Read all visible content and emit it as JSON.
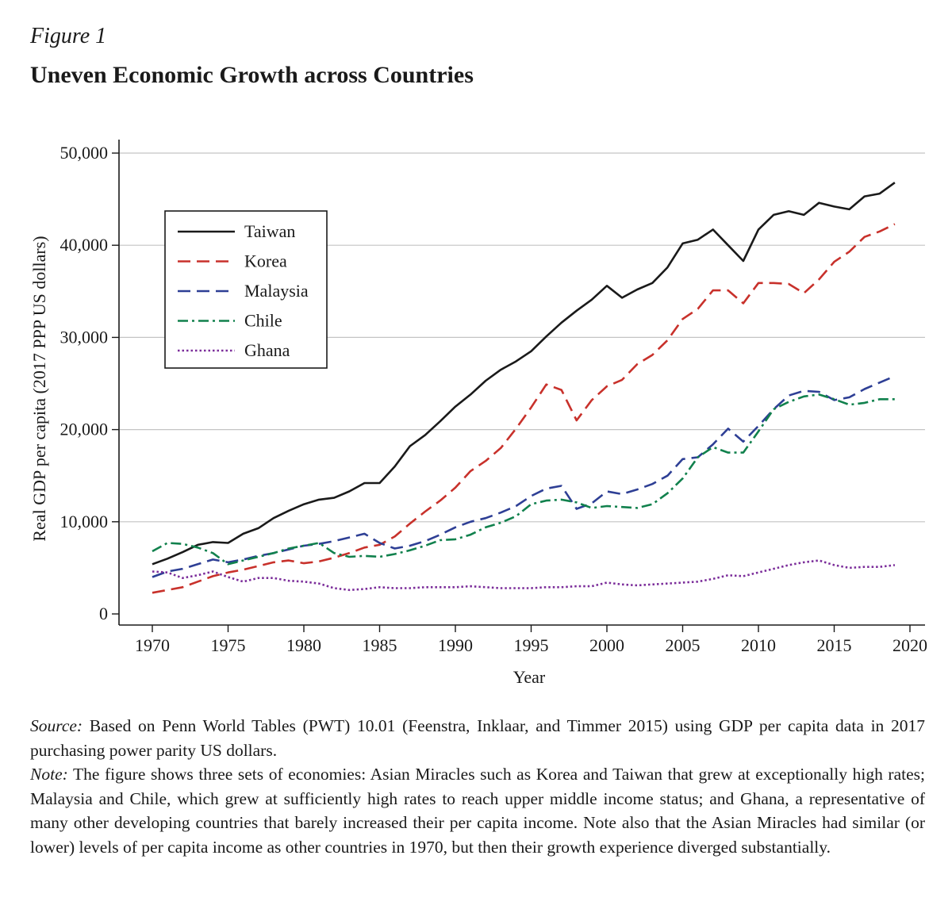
{
  "figure": {
    "label": "Figure 1",
    "title": "Uneven Economic Growth across Countries"
  },
  "chart_data": {
    "type": "line",
    "xlabel": "Year",
    "ylabel": "Real GDP per capita (2017 PPP US dollars)",
    "xlim": [
      1970,
      2020
    ],
    "ylim": [
      0,
      50000
    ],
    "xticks": [
      1970,
      1975,
      1980,
      1985,
      1990,
      1995,
      2000,
      2005,
      2010,
      2015,
      2020
    ],
    "xtick_labels": [
      "1970",
      "1975",
      "1980",
      "1985",
      "1990",
      "1995",
      "2000",
      "2005",
      "2010",
      "2015",
      "2020"
    ],
    "yticks": [
      0,
      10000,
      20000,
      30000,
      40000,
      50000
    ],
    "ytick_labels": [
      "0",
      "10,000",
      "20,000",
      "30,000",
      "40,000",
      "50,000"
    ],
    "grid": "horizontal",
    "legend": "upper-left",
    "x": [
      1970,
      1971,
      1972,
      1973,
      1974,
      1975,
      1976,
      1977,
      1978,
      1979,
      1980,
      1981,
      1982,
      1983,
      1984,
      1985,
      1986,
      1987,
      1988,
      1989,
      1990,
      1991,
      1992,
      1993,
      1994,
      1995,
      1996,
      1997,
      1998,
      1999,
      2000,
      2001,
      2002,
      2003,
      2004,
      2005,
      2006,
      2007,
      2008,
      2009,
      2010,
      2011,
      2012,
      2013,
      2014,
      2015,
      2016,
      2017,
      2018,
      2019
    ],
    "series": [
      {
        "name": "Taiwan",
        "color": "#1a1a1a",
        "dash": "solid",
        "values": [
          5400,
          6000,
          6700,
          7500,
          7800,
          7700,
          8700,
          9300,
          10400,
          11200,
          11900,
          12400,
          12600,
          13300,
          14200,
          14200,
          16000,
          18200,
          19400,
          20900,
          22500,
          23800,
          25300,
          26500,
          27400,
          28500,
          30100,
          31600,
          32900,
          34100,
          35600,
          34300,
          35200,
          35900,
          37600,
          40200,
          40600,
          41700,
          40000,
          38300,
          41700,
          43300,
          43700,
          43300,
          44600,
          44200,
          43900,
          45300,
          45600,
          46800
        ]
      },
      {
        "name": "Korea",
        "color": "#c8312b",
        "dash": "dashed",
        "values": [
          2300,
          2600,
          2900,
          3500,
          4100,
          4500,
          4800,
          5200,
          5600,
          5800,
          5500,
          5700,
          6100,
          6600,
          7200,
          7500,
          8400,
          9800,
          11100,
          12300,
          13700,
          15500,
          16600,
          18000,
          20100,
          22400,
          24900,
          24300,
          21000,
          23200,
          24700,
          25400,
          27100,
          28100,
          29700,
          32000,
          33100,
          35100,
          35100,
          33700,
          35900,
          35900,
          35800,
          34800,
          36300,
          38200,
          39300,
          40900,
          41500,
          42300
        ]
      },
      {
        "name": "Malaysia",
        "color": "#2e3f95",
        "dash": "dashed",
        "values": [
          4000,
          4600,
          4900,
          5400,
          5900,
          5600,
          5900,
          6300,
          6600,
          7000,
          7400,
          7600,
          7900,
          8300,
          8700,
          7700,
          7100,
          7400,
          7900,
          8600,
          9400,
          10000,
          10400,
          11000,
          11700,
          12800,
          13600,
          13900,
          11400,
          12000,
          13300,
          13000,
          13500,
          14100,
          15000,
          16800,
          17000,
          18400,
          20100,
          18700,
          20400,
          22200,
          23700,
          24200,
          24100,
          23200,
          23500,
          24400,
          25100,
          25800
        ]
      },
      {
        "name": "Chile",
        "color": "#11814d",
        "dash": "dashdot",
        "values": [
          6800,
          7700,
          7600,
          7200,
          6600,
          5400,
          5800,
          6200,
          6600,
          7100,
          7400,
          7700,
          6600,
          6200,
          6300,
          6200,
          6500,
          6900,
          7400,
          8000,
          8100,
          8600,
          9400,
          9900,
          10600,
          11900,
          12300,
          12400,
          12100,
          11500,
          11700,
          11600,
          11500,
          11900,
          13100,
          14700,
          17000,
          18100,
          17500,
          17500,
          19800,
          22200,
          23000,
          23600,
          23800,
          23300,
          22700,
          22900,
          23300,
          23300
        ]
      },
      {
        "name": "Ghana",
        "color": "#7b2d9a",
        "dash": "dotted",
        "values": [
          4600,
          4500,
          3900,
          4200,
          4600,
          4000,
          3500,
          3900,
          3900,
          3600,
          3500,
          3300,
          2800,
          2600,
          2700,
          2900,
          2800,
          2800,
          2900,
          2900,
          2900,
          3000,
          2900,
          2800,
          2800,
          2800,
          2900,
          2900,
          3000,
          3000,
          3400,
          3200,
          3100,
          3200,
          3300,
          3400,
          3500,
          3800,
          4200,
          4100,
          4500,
          4900,
          5300,
          5600,
          5800,
          5300,
          5000,
          5100,
          5100,
          5300
        ]
      }
    ]
  },
  "caption": {
    "source_label": "Source:",
    "source_text": " Based on Penn World Tables (PWT) 10.01 (Feenstra, Inklaar, and Timmer 2015) using GDP per capita data in 2017 purchasing power parity US dollars.",
    "note_label": "Note:",
    "note_text": " The figure shows three sets of economies: Asian Miracles such as Korea and Taiwan that grew at exceptionally high rates; Malaysia and Chile, which grew at sufficiently high rates to reach upper middle income status; and Ghana, a representative of many other developing countries that barely increased their per capita income. Note also that the Asian Miracles had similar (or lower) levels of per capita income as other countries in 1970, but then their growth experience diverged substantially."
  }
}
